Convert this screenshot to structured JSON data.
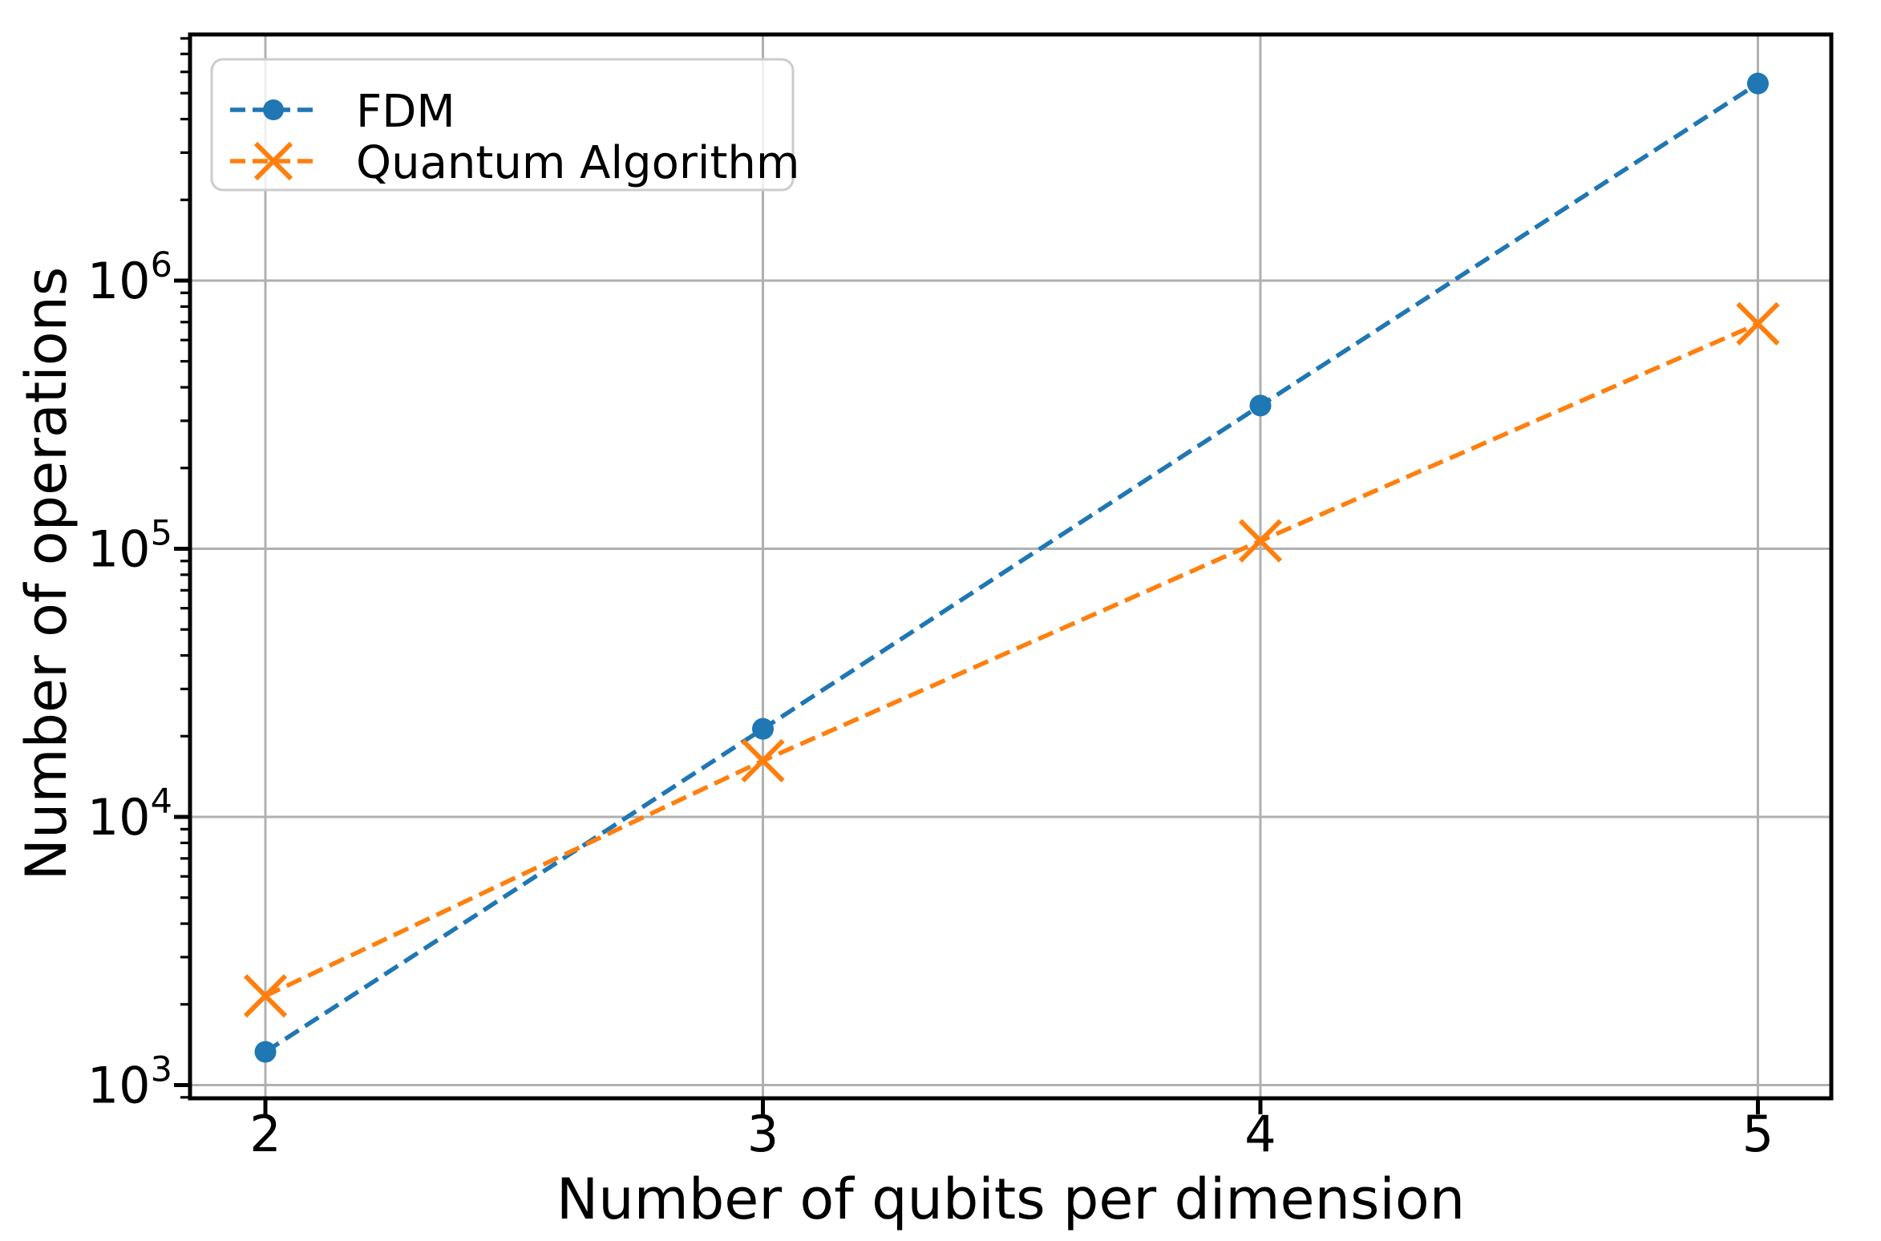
{
  "figure": {
    "background": "#ffffff",
    "title": ""
  },
  "chart_data": {
    "type": "line",
    "title": "",
    "xlabel": "Number of qubits per dimension",
    "ylabel": "Number of operations",
    "x": [
      2,
      3,
      4,
      5
    ],
    "series": [
      {
        "name": "FDM",
        "color": "#1f77b4",
        "marker": "circle",
        "linestyle": "dashed",
        "values": [
          1330,
          21300,
          342000,
          5430000
        ]
      },
      {
        "name": "Quantum Algorithm",
        "color": "#ff7f0e",
        "marker": "x",
        "linestyle": "dashed",
        "values": [
          2150,
          16200,
          107000,
          690000
        ]
      }
    ],
    "x_ticks": [
      2,
      3,
      4,
      5
    ],
    "x_tick_labels": [
      "2",
      "3",
      "4",
      "5"
    ],
    "y_scale": "log",
    "y_tick_exponents": [
      3,
      4,
      5,
      6
    ],
    "y_tick_base": "10",
    "xlim": [
      1.8485,
      5.1475
    ],
    "ylim_exponents": [
      2.9507,
      6.9177
    ],
    "grid": true,
    "grid_color": "#b0b0b0",
    "spine_color": "#000000",
    "legend_position": "upper left",
    "legend_frame_color": "#cccccc",
    "legend_background": "rgba(255,255,255,0.8)"
  },
  "legend": {
    "items": [
      {
        "label": "FDM"
      },
      {
        "label": "Quantum Algorithm"
      }
    ]
  }
}
